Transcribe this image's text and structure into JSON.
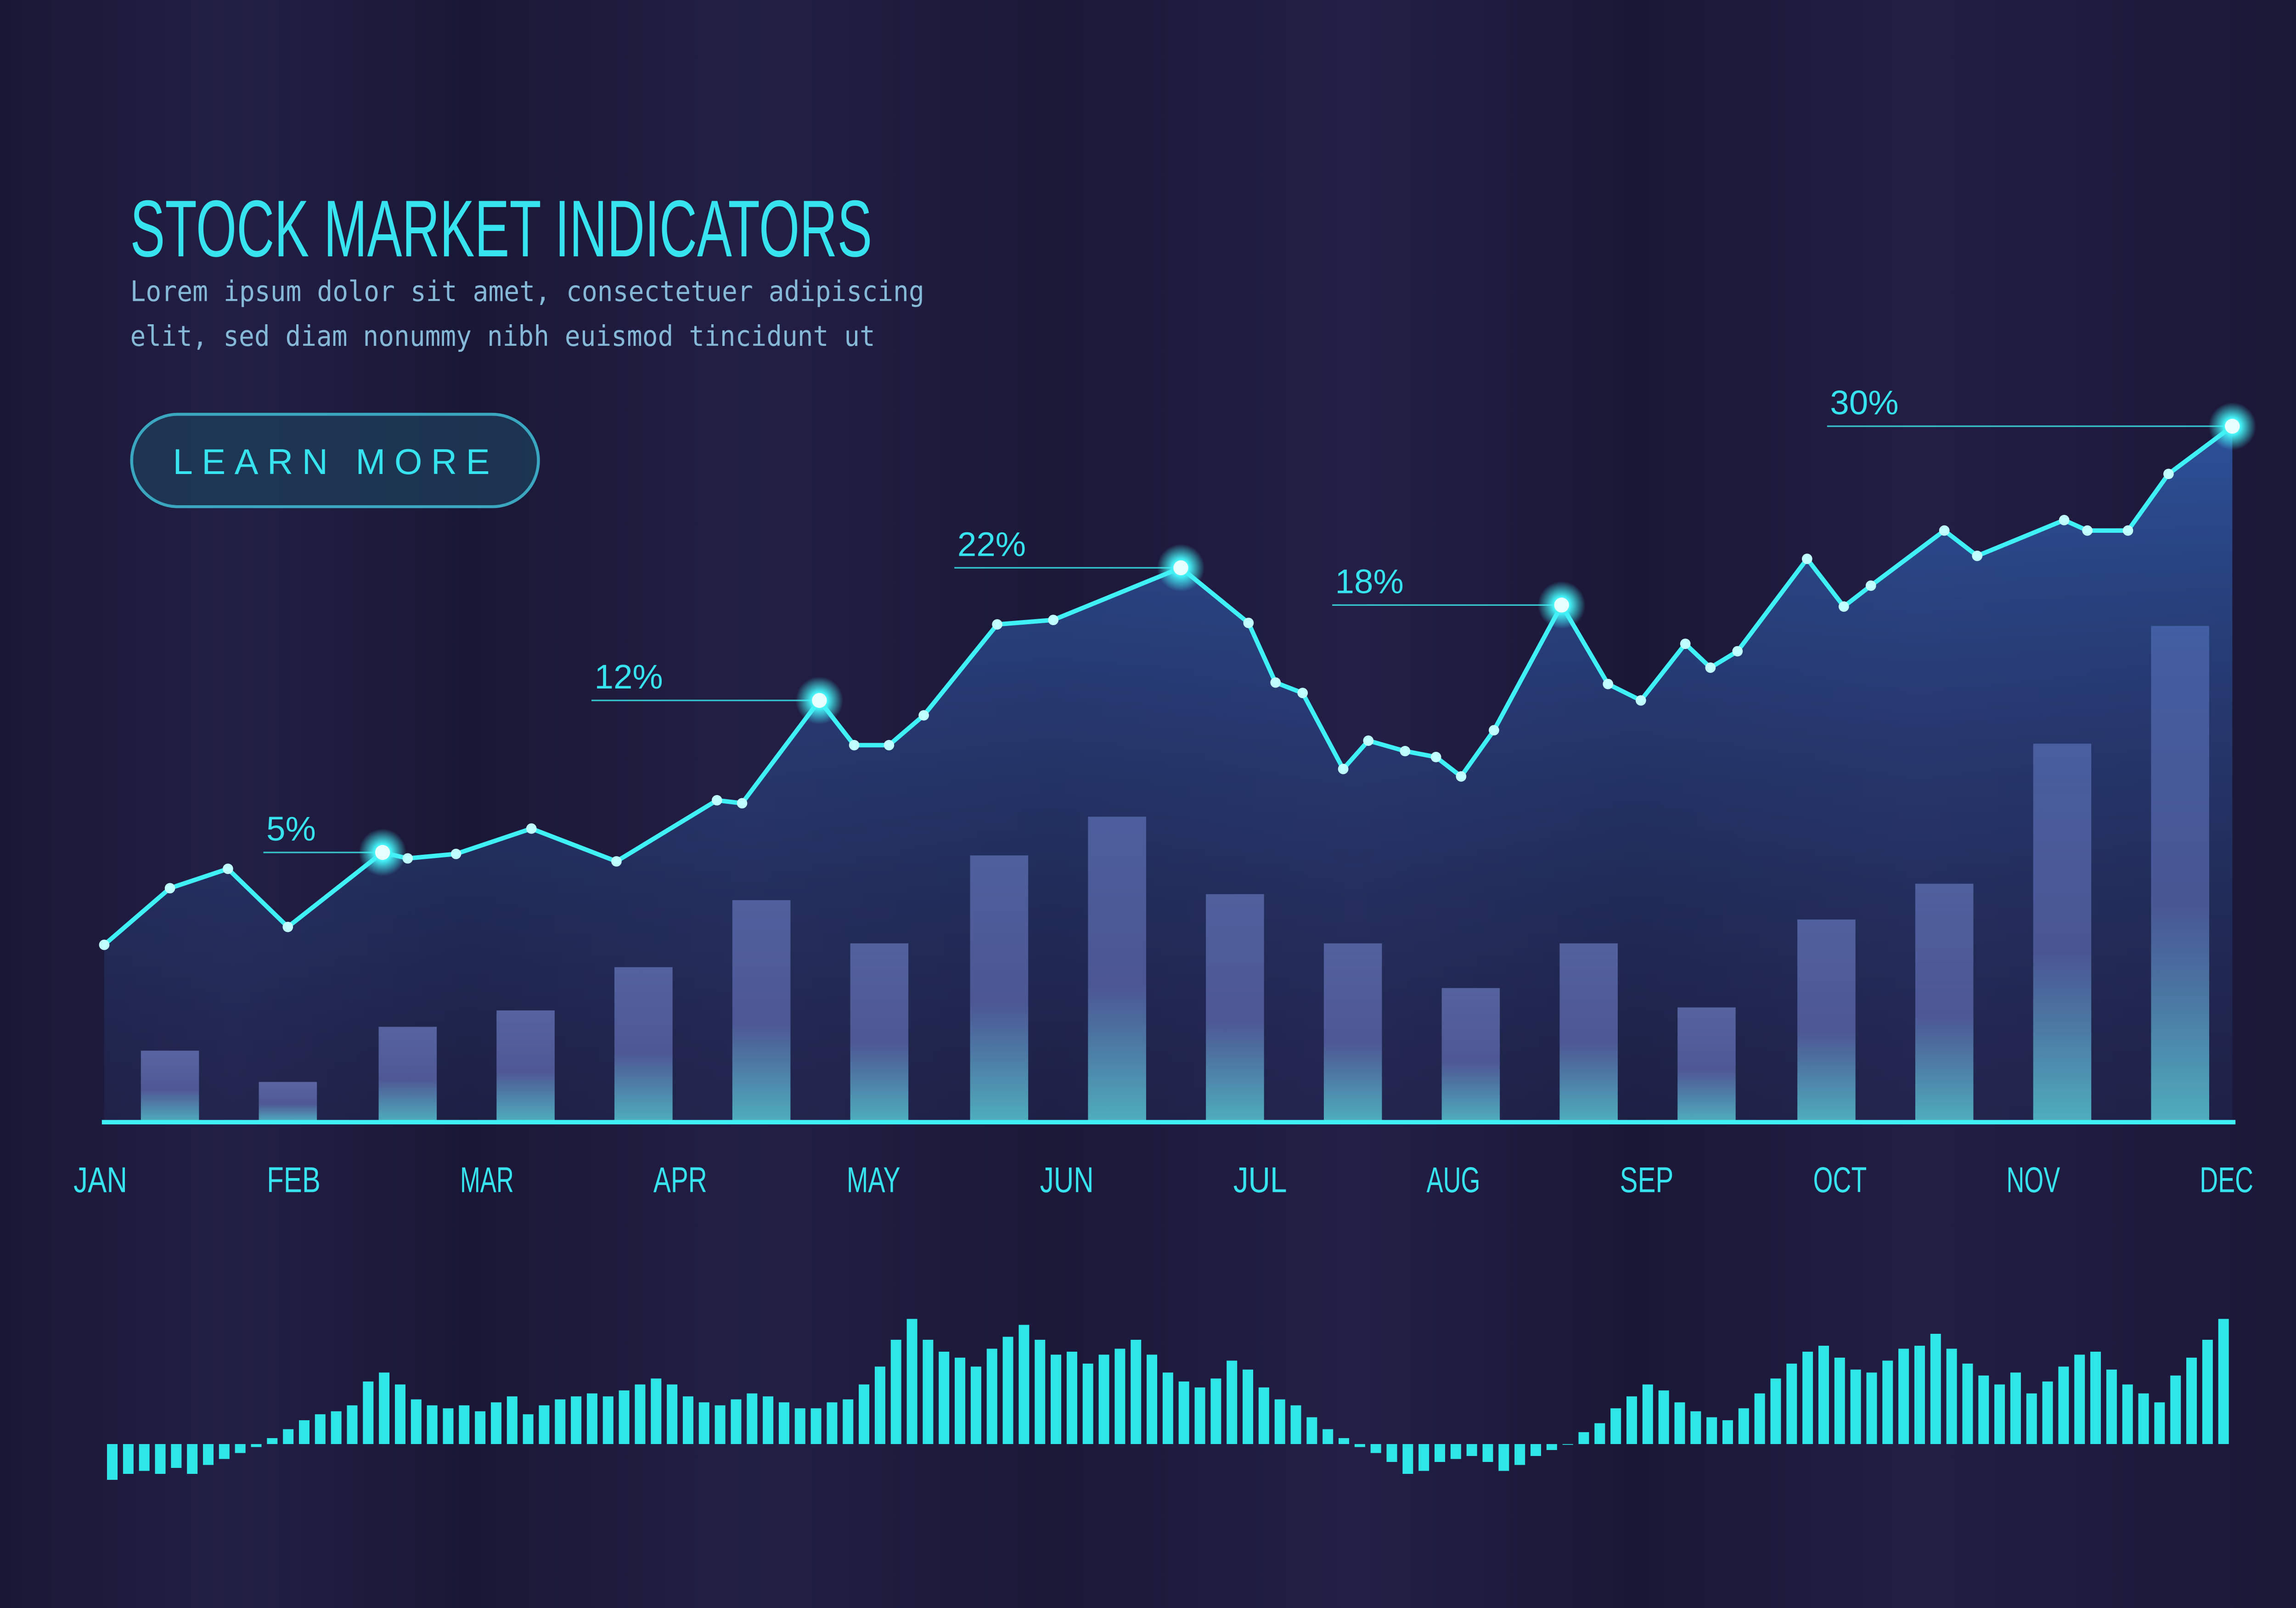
{
  "button": "LEARN MORE",
  "chart_data": [
    {
      "type": "bar",
      "title": "STOCK MARKET INDICATORS",
      "subtitle": [
        "Lorem ipsum dolor sit amet, consectetuer adipiscing",
        "elit, sed diam nonummy nibh euismod tincidunt ut"
      ],
      "xlim": [
        0,
        11
      ],
      "xticks": [
        {
          "value": 0,
          "label": "JAN"
        },
        {
          "value": 1,
          "label": "FEB"
        },
        {
          "value": 2,
          "label": "MAR"
        },
        {
          "value": 3,
          "label": "APR"
        },
        {
          "value": 4,
          "label": "MAY"
        },
        {
          "value": 5,
          "label": "JUN"
        },
        {
          "value": 6,
          "label": "JUL"
        },
        {
          "value": 7,
          "label": "AUG"
        },
        {
          "value": 8,
          "label": "SEP"
        },
        {
          "value": 9,
          "label": "OCT"
        },
        {
          "value": 10,
          "label": "NOV"
        },
        {
          "value": 11,
          "label": "DEC"
        }
      ],
      "ylim": [
        0,
        100
      ],
      "series": [
        {
          "type": "bar",
          "color": "#7a84c6",
          "x": [
            0.36,
            0.97,
            1.59,
            2.2,
            2.81,
            3.42,
            4.03,
            4.65,
            5.26,
            5.87,
            6.48,
            7.09,
            7.7,
            8.31,
            8.93,
            9.54,
            10.15,
            10.76
          ],
          "values": [
            9.6,
            5.4,
            12.8,
            15,
            20.8,
            29.8,
            24,
            35.8,
            41,
            30.6,
            24,
            18,
            24,
            15.4,
            27.2,
            32,
            50.8,
            66.6
          ]
        },
        {
          "type": "line",
          "color": "#3ff0f5",
          "x": [
            0.02,
            0.36,
            0.66,
            0.97,
            1.46,
            1.59,
            1.84,
            2.23,
            2.67,
            3.19,
            3.32,
            3.72,
            3.9,
            4.08,
            4.26,
            4.64,
            4.93,
            5.59,
            5.94,
            6.08,
            6.22,
            6.43,
            6.56,
            6.75,
            6.91,
            7.04,
            7.21,
            7.56,
            7.8,
            7.97,
            8.2,
            8.33,
            8.47,
            8.83,
            9.02,
            9.16,
            9.54,
            9.71,
            10.16,
            10.28,
            10.49,
            10.7,
            11.03
          ],
          "values": [
            23.8,
            31.4,
            34,
            26.2,
            36.2,
            35.4,
            36,
            39.4,
            35,
            43.2,
            42.8,
            56.6,
            50.6,
            50.6,
            54.6,
            66.8,
            67.4,
            74.4,
            67,
            59,
            57.6,
            47.4,
            51.2,
            49.8,
            49,
            46.4,
            52.6,
            69.4,
            58.8,
            56.6,
            64.2,
            61,
            63.2,
            75.6,
            69.2,
            72,
            79.4,
            76,
            80.8,
            79.4,
            79.4,
            87,
            93.4
          ]
        }
      ],
      "annotations": [
        {
          "text": "5%",
          "x": 1.46,
          "y": 36.2
        },
        {
          "text": "12%",
          "x": 3.72,
          "y": 56.6
        },
        {
          "text": "22%",
          "x": 5.59,
          "y": 74.4
        },
        {
          "text": "18%",
          "x": 7.56,
          "y": 69.4
        },
        {
          "text": "30%",
          "x": 11.03,
          "y": 93.4
        }
      ]
    },
    {
      "type": "bar",
      "color": "#2fe6e6",
      "ylim": [
        -30,
        90
      ],
      "values": [
        -24,
        -20,
        -18,
        -20,
        -16,
        -20,
        -14,
        -10,
        -6,
        -2,
        4,
        10,
        16,
        20,
        22,
        26,
        42,
        48,
        40,
        30,
        26,
        24,
        26,
        22,
        28,
        32,
        20,
        26,
        30,
        32,
        34,
        32,
        36,
        40,
        44,
        40,
        32,
        28,
        26,
        30,
        34,
        32,
        28,
        24,
        24,
        28,
        30,
        40,
        52,
        70,
        84,
        70,
        62,
        58,
        52,
        64,
        72,
        80,
        70,
        60,
        62,
        54,
        60,
        64,
        70,
        60,
        48,
        42,
        38,
        44,
        56,
        50,
        38,
        30,
        26,
        18,
        10,
        4,
        -2,
        -6,
        -12,
        -20,
        -18,
        -12,
        -10,
        -8,
        -12,
        -18,
        -14,
        -8,
        -4,
        0,
        8,
        14,
        24,
        32,
        40,
        36,
        28,
        22,
        18,
        16,
        24,
        34,
        44,
        54,
        62,
        66,
        58,
        50,
        48,
        56,
        64,
        66,
        74,
        64,
        54,
        46,
        40,
        48,
        34,
        42,
        52,
        60,
        62,
        50,
        40,
        34,
        28,
        46,
        58,
        70,
        84
      ]
    }
  ]
}
